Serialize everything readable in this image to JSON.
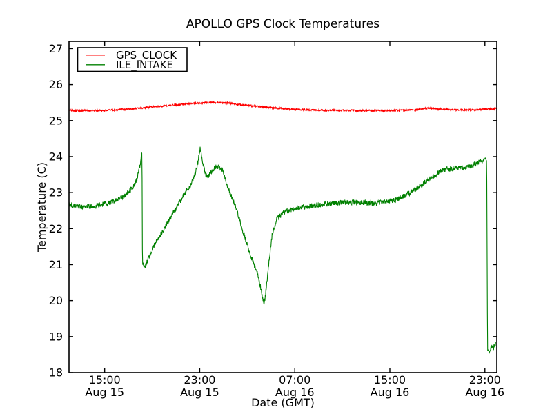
{
  "chart_data": {
    "type": "line",
    "title": "APOLLO GPS Clock Temperatures",
    "xlabel": "Date (GMT)",
    "ylabel": "Temperature (C)",
    "grid": false,
    "background": "#ffffff",
    "legend_position": "upper left",
    "ylim": [
      18,
      27.2
    ],
    "yticks": [
      18,
      19,
      20,
      21,
      22,
      23,
      24,
      25,
      26,
      27
    ],
    "x_hours_span": [
      0,
      36
    ],
    "x_axis_start": "Aug 15 12:00 GMT",
    "xticks": [
      {
        "hour": 3,
        "time": "15:00",
        "date": "Aug 15"
      },
      {
        "hour": 11,
        "time": "23:00",
        "date": "Aug 15"
      },
      {
        "hour": 19,
        "time": "07:00",
        "date": "Aug 16"
      },
      {
        "hour": 27,
        "time": "15:00",
        "date": "Aug 16"
      },
      {
        "hour": 35,
        "time": "23:00",
        "date": "Aug 16"
      }
    ],
    "series": [
      {
        "name": "GPS_CLOCK",
        "color": "#ff0000",
        "noise_amp": 0.025,
        "anchors": [
          [
            0,
            25.285
          ],
          [
            1,
            25.28
          ],
          [
            2,
            25.275
          ],
          [
            3,
            25.28
          ],
          [
            4,
            25.3
          ],
          [
            5,
            25.32
          ],
          [
            6,
            25.35
          ],
          [
            7,
            25.38
          ],
          [
            8,
            25.41
          ],
          [
            9,
            25.44
          ],
          [
            10,
            25.47
          ],
          [
            11,
            25.49
          ],
          [
            12,
            25.505
          ],
          [
            13,
            25.5
          ],
          [
            14,
            25.46
          ],
          [
            15,
            25.42
          ],
          [
            16,
            25.39
          ],
          [
            17,
            25.36
          ],
          [
            18,
            25.33
          ],
          [
            19,
            25.31
          ],
          [
            20,
            25.3
          ],
          [
            21,
            25.29
          ],
          [
            22,
            25.285
          ],
          [
            24,
            25.28
          ],
          [
            26,
            25.28
          ],
          [
            28,
            25.285
          ],
          [
            29.3,
            25.3
          ],
          [
            30.0,
            25.34
          ],
          [
            30.5,
            25.35
          ],
          [
            31.2,
            25.32
          ],
          [
            32,
            25.305
          ],
          [
            33,
            25.295
          ],
          [
            34,
            25.3
          ],
          [
            35,
            25.32
          ],
          [
            36,
            25.33
          ]
        ]
      },
      {
        "name": "ILE_INTAKE",
        "color": "#008000",
        "noise_amp": 0.07,
        "anchors": [
          [
            0,
            22.68
          ],
          [
            0.6,
            22.62
          ],
          [
            1.3,
            22.6
          ],
          [
            2.2,
            22.63
          ],
          [
            3.0,
            22.7
          ],
          [
            3.6,
            22.74
          ],
          [
            4.2,
            22.82
          ],
          [
            4.8,
            22.95
          ],
          [
            5.3,
            23.12
          ],
          [
            5.7,
            23.35
          ],
          [
            6.0,
            23.8
          ],
          [
            6.1,
            24.05
          ],
          [
            6.14,
            24.2
          ],
          [
            6.18,
            21.05
          ],
          [
            6.35,
            20.9
          ],
          [
            6.7,
            21.2
          ],
          [
            7.2,
            21.55
          ],
          [
            8.0,
            22.0
          ],
          [
            8.8,
            22.45
          ],
          [
            9.6,
            22.9
          ],
          [
            10.2,
            23.2
          ],
          [
            10.6,
            23.5
          ],
          [
            10.85,
            23.85
          ],
          [
            11.03,
            24.23
          ],
          [
            11.25,
            23.85
          ],
          [
            11.5,
            23.5
          ],
          [
            11.75,
            23.45
          ],
          [
            12.1,
            23.65
          ],
          [
            12.5,
            23.72
          ],
          [
            12.9,
            23.63
          ],
          [
            13.2,
            23.3
          ],
          [
            13.6,
            22.95
          ],
          [
            14.1,
            22.55
          ],
          [
            14.6,
            21.95
          ],
          [
            15.0,
            21.55
          ],
          [
            15.5,
            21.05
          ],
          [
            15.9,
            20.7
          ],
          [
            16.2,
            20.25
          ],
          [
            16.42,
            19.88
          ],
          [
            16.55,
            20.2
          ],
          [
            16.8,
            21.0
          ],
          [
            17.1,
            21.85
          ],
          [
            17.45,
            22.25
          ],
          [
            18.0,
            22.45
          ],
          [
            19.0,
            22.55
          ],
          [
            20.0,
            22.62
          ],
          [
            21.0,
            22.66
          ],
          [
            22.0,
            22.7
          ],
          [
            23.0,
            22.72
          ],
          [
            24.0,
            22.73
          ],
          [
            25.0,
            22.72
          ],
          [
            25.8,
            22.7
          ],
          [
            26.5,
            22.74
          ],
          [
            27.5,
            22.8
          ],
          [
            28.3,
            22.92
          ],
          [
            29.0,
            23.05
          ],
          [
            29.8,
            23.25
          ],
          [
            30.5,
            23.42
          ],
          [
            31.2,
            23.58
          ],
          [
            31.8,
            23.65
          ],
          [
            32.5,
            23.68
          ],
          [
            33.2,
            23.7
          ],
          [
            33.8,
            23.72
          ],
          [
            34.2,
            23.8
          ],
          [
            34.6,
            23.86
          ],
          [
            35.0,
            23.9
          ],
          [
            35.15,
            23.92
          ],
          [
            35.22,
            18.62
          ],
          [
            35.35,
            18.6
          ],
          [
            35.55,
            18.72
          ],
          [
            35.7,
            18.68
          ],
          [
            35.9,
            18.78
          ]
        ]
      }
    ]
  }
}
